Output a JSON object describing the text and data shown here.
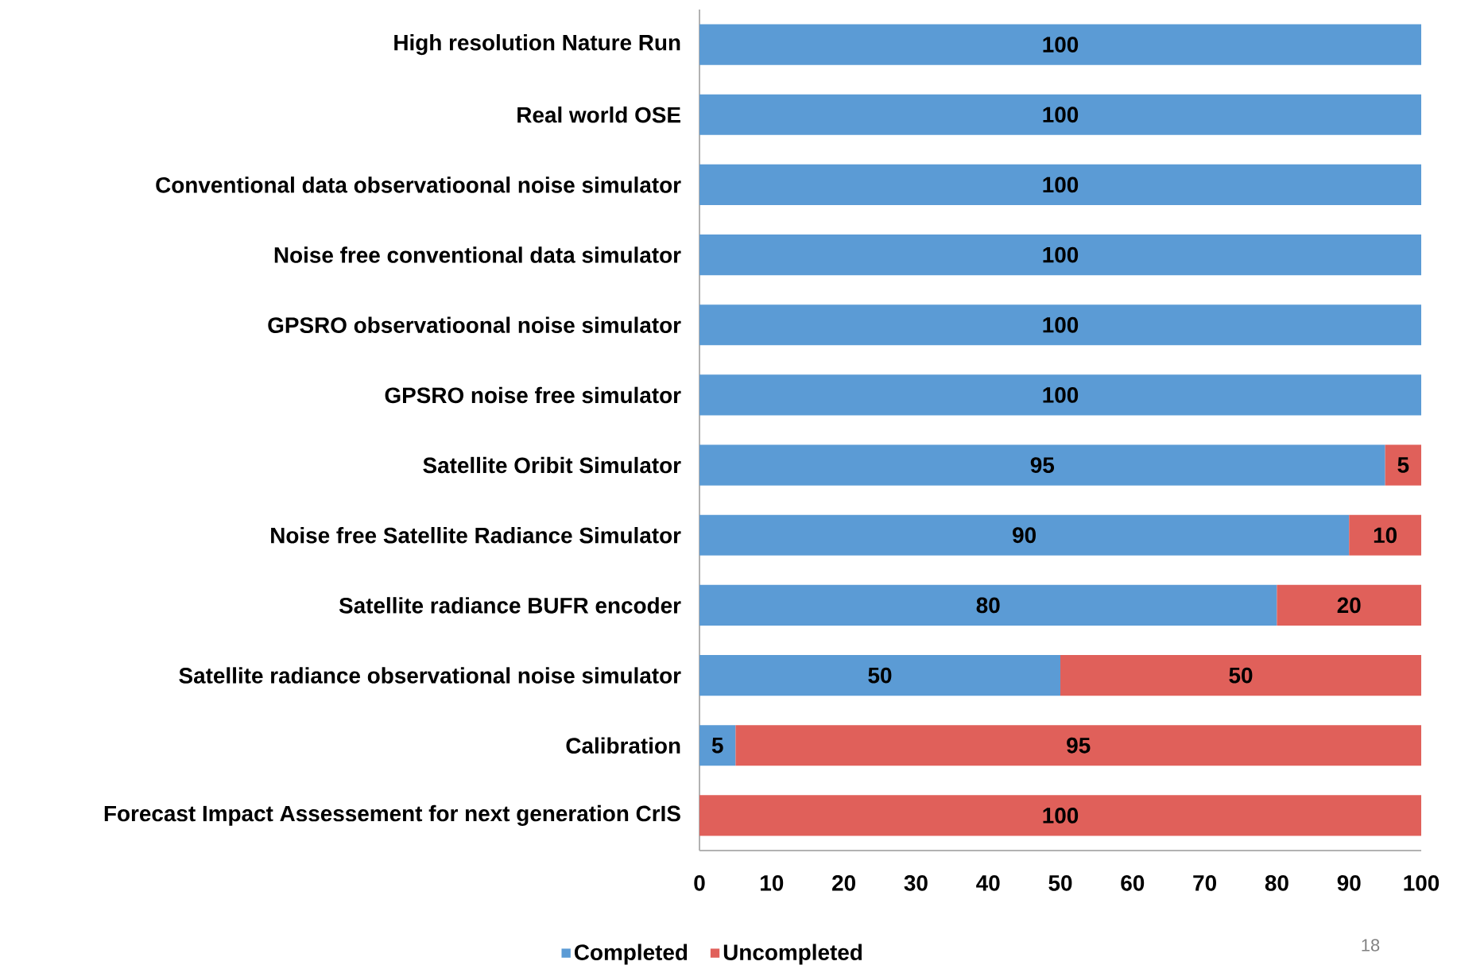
{
  "chart_data": {
    "type": "bar",
    "orientation": "horizontal",
    "stacked": true,
    "data_labels": true,
    "legend": "bottom",
    "grid": false,
    "categories": [
      "High resolution Nature Run",
      "Real world OSE",
      "Conventional data observatioonal noise simulator",
      "Noise free conventional data simulator",
      "GPSRO observatioonal noise simulator",
      "GPSRO noise free simulator",
      "Satellite Oribit Simulator",
      "Noise free Satellite Radiance Simulator",
      "Satellite radiance BUFR encoder",
      "Satellite radiance observational noise simulator",
      "Calibration",
      "Forecast Impact Assessement for next generation CrIS"
    ],
    "series": [
      {
        "name": "Completed",
        "color": "#5b9bd5",
        "values": [
          100,
          100,
          100,
          100,
          100,
          100,
          95,
          90,
          80,
          50,
          5,
          null
        ]
      },
      {
        "name": "Uncompleted",
        "color": "#e0605a",
        "values": [
          null,
          null,
          null,
          null,
          null,
          null,
          5,
          10,
          20,
          50,
          95,
          100
        ]
      }
    ],
    "xlim": [
      0,
      100
    ],
    "xticks": [
      0,
      10,
      20,
      30,
      40,
      50,
      60,
      70,
      80,
      90,
      100
    ],
    "annotations": [
      "18"
    ]
  }
}
